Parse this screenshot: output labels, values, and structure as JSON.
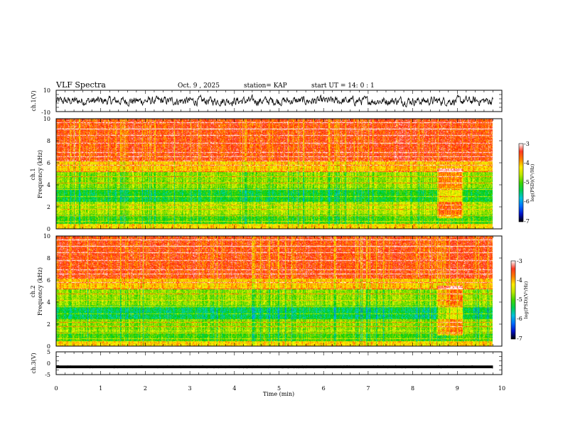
{
  "header": {
    "title": "VLF Spectra",
    "date": "Oct. 9 , 2025",
    "station": "station= KAP",
    "start": "start  UT =   14: 0  : 1"
  },
  "colors": {
    "scale": [
      "#000000",
      "#0000c0",
      "#0080ff",
      "#00d0d0",
      "#00d000",
      "#c0e000",
      "#ffff00",
      "#ffa000",
      "#ff2000",
      "#ff8080",
      "#ffffff"
    ],
    "trace": "#000000"
  },
  "chart_data": [
    {
      "type": "line",
      "panel": "ch1-waveform",
      "ylabel": "ch.1(V)",
      "ylim": [
        -10,
        10
      ],
      "ytick_labels": [
        "10",
        "-10"
      ],
      "x_range_min": [
        0,
        9.8
      ],
      "amplitude_v": 4
    },
    {
      "type": "heatmap",
      "panel": "ch1-spectrogram",
      "ylabel_channel": "ch.1",
      "ylabel": "Frequency  (kHz)",
      "ylim": [
        0,
        10
      ],
      "ytick_labels": [
        "0",
        "2",
        "4",
        "6",
        "8",
        "10"
      ],
      "colorbar": {
        "label": "log(PSD)(V²/Hz)",
        "range": [
          -7,
          -3
        ],
        "tick_labels": [
          "-3",
          "-4",
          "-5",
          "-6",
          "-7"
        ]
      },
      "x_range_min": [
        0,
        9.8
      ],
      "event_min": [
        8.55,
        9.1
      ]
    },
    {
      "type": "heatmap",
      "panel": "ch2-spectrogram",
      "ylabel_channel": "ch.2",
      "ylabel": "Frequency  (kHz)",
      "ylim": [
        0,
        10
      ],
      "ytick_labels": [
        "0",
        "2",
        "4",
        "6",
        "8",
        "10"
      ],
      "colorbar": {
        "label": "log(PSD)(V²/Hz)",
        "range": [
          -7,
          -3
        ],
        "tick_labels": [
          "-3",
          "-4",
          "-5",
          "-6",
          "-7"
        ]
      },
      "x_range_min": [
        0,
        9.8
      ],
      "event_min": [
        8.55,
        9.1
      ]
    },
    {
      "type": "line",
      "panel": "ch3-waveform",
      "ylabel": "ch.3(V)",
      "ylim": [
        -5,
        5
      ],
      "ytick_labels": [
        "5",
        "0",
        "-5"
      ],
      "x_range_min": [
        0,
        9.8
      ],
      "center_v": -1.6,
      "amplitude_v": 0.6
    }
  ],
  "xaxis": {
    "label": "Time  (min)",
    "xlim": [
      0,
      10
    ],
    "tick_labels": [
      "0",
      "1",
      "2",
      "3",
      "4",
      "5",
      "6",
      "7",
      "8",
      "9",
      "10"
    ]
  }
}
